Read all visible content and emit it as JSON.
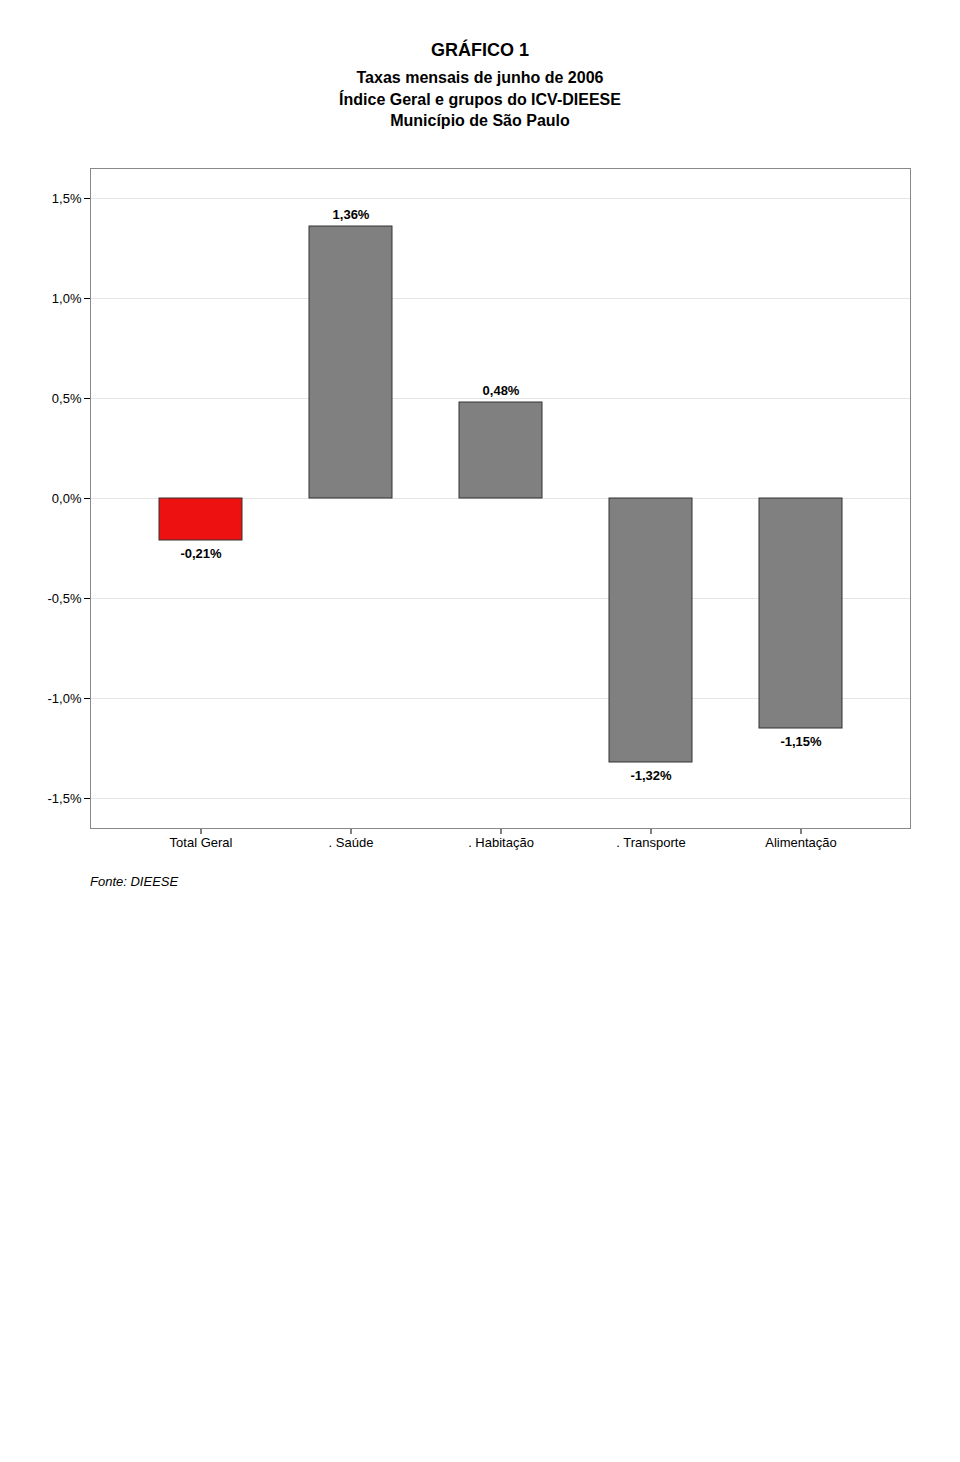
{
  "chart_data": {
    "type": "bar",
    "title": "GRÁFICO 1",
    "subtitle": "Taxas mensais de junho de 2006\nÍndice Geral e grupos do ICV-DIEESE\nMunicípio de São Paulo",
    "categories": [
      "Total Geral",
      ". Saúde",
      ". Habitação",
      ". Transporte",
      "Alimentação"
    ],
    "values": [
      -0.21,
      1.36,
      0.48,
      -1.32,
      -1.15
    ],
    "value_labels": [
      "-0,21%",
      "1,36%",
      "0,48%",
      "-1,32%",
      "-1,15%"
    ],
    "data_labels": true,
    "colors": [
      "#ee1111",
      "#808080",
      "#808080",
      "#808080",
      "#808080"
    ],
    "ylim": [
      -1.65,
      1.65
    ],
    "yticks": [
      {
        "value": -1.5,
        "label": "-1,5%"
      },
      {
        "value": -1.0,
        "label": "-1,0%"
      },
      {
        "value": -0.5,
        "label": "-0,5%"
      },
      {
        "value": 0.0,
        "label": "0,0%"
      },
      {
        "value": 0.5,
        "label": "0,5%"
      },
      {
        "value": 1.0,
        "label": "1,0%"
      },
      {
        "value": 1.5,
        "label": "1,5%"
      }
    ],
    "grid": true,
    "annotations": [
      "Fonte: DIEESE"
    ]
  }
}
